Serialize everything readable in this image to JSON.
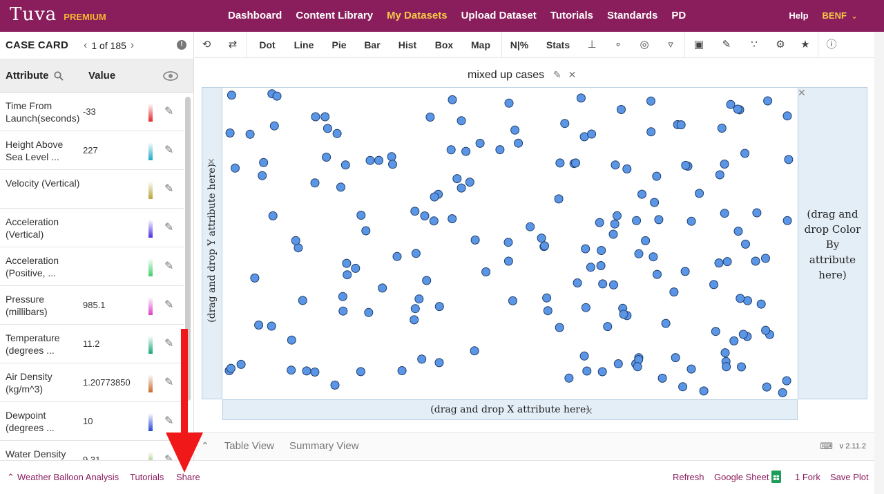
{
  "nav": {
    "brand": "Tuva",
    "tier": "PREMIUM",
    "links": [
      "Dashboard",
      "Content Library",
      "My Datasets",
      "Upload Dataset",
      "Tutorials",
      "Standards",
      "PD"
    ],
    "active_index": 2,
    "help": "Help",
    "user": "BENF"
  },
  "case_card": {
    "title": "CASE CARD",
    "position": "1 of 185",
    "col_attribute": "Attribute",
    "col_value": "Value",
    "rows": [
      {
        "name": "Time From Launch(seconds)",
        "value": "-33",
        "color": "#e3252a"
      },
      {
        "name": "Height Above Sea Level ...",
        "value": "227",
        "color": "#1aa9c4"
      },
      {
        "name": "Velocity (Vertical)",
        "value": "",
        "color": "#b8a43a"
      },
      {
        "name": "Acceleration (Vertical)",
        "value": "",
        "color": "#4b2ee3"
      },
      {
        "name": "Acceleration (Positive, ...",
        "value": "",
        "color": "#3ccf6b"
      },
      {
        "name": "Pressure (millibars)",
        "value": "985.1",
        "color": "#e03bc8"
      },
      {
        "name": "Temperature (degrees ...",
        "value": "11.2",
        "color": "#18a77a"
      },
      {
        "name": "Air Density (kg/m^3)",
        "value": "1.20773850",
        "color": "#c76a2c"
      },
      {
        "name": "Dewpoint (degrees ...",
        "value": "10",
        "color": "#2546d6"
      },
      {
        "name": "Water Density",
        "value": "9.31",
        "color": "#6aa83a"
      }
    ]
  },
  "toolbar": {
    "items": [
      "Dot",
      "Line",
      "Pie",
      "Bar",
      "Hist",
      "Box",
      "Map",
      "N|%",
      "Stats"
    ]
  },
  "plot": {
    "title": "mixed up cases",
    "y_drop": "(drag and drop Y attribute here)",
    "x_drop": "(drag and drop X attribute here)",
    "color_drop": "(drag and drop Color By attribute here)",
    "point_color": "#5b96e6"
  },
  "views": {
    "table": "Table View",
    "summary": "Summary View",
    "version": "v 2.11.2"
  },
  "footer": {
    "dataset": "Weather Balloon Analysis",
    "tutorials": "Tutorials",
    "share": "Share",
    "refresh": "Refresh",
    "google_sheet": "Google Sheet",
    "forks": "1 Fork",
    "save_plot": "Save Plot"
  }
}
